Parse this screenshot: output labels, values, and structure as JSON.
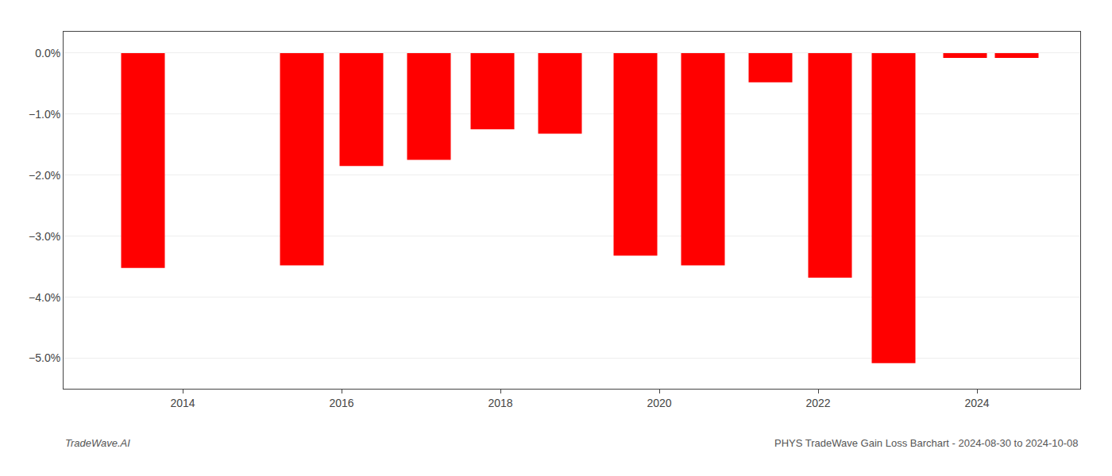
{
  "chart_data": {
    "type": "bar",
    "x": [
      2013.5,
      2015.5,
      2016.25,
      2017.1,
      2017.9,
      2018.75,
      2019.7,
      2020.55,
      2021.4,
      2022.15,
      2022.95,
      2023.85,
      2024.5
    ],
    "values": [
      -3.52,
      -3.48,
      -1.85,
      -1.75,
      -1.25,
      -1.32,
      -3.32,
      -3.48,
      -0.48,
      -3.68,
      -5.08,
      -0.08,
      -0.08
    ],
    "color": "#ff0000",
    "xlim": [
      2012.5,
      2025.3
    ],
    "xticks": [
      2014,
      2016,
      2018,
      2020,
      2022,
      2024
    ],
    "ylim": [
      -5.5,
      0.35
    ],
    "yticks": [
      {
        "value": 0.0,
        "label": "0.0%"
      },
      {
        "value": -1.0,
        "label": "−1.0%"
      },
      {
        "value": -2.0,
        "label": "−2.0%"
      },
      {
        "value": -3.0,
        "label": "−3.0%"
      },
      {
        "value": -4.0,
        "label": "−4.0%"
      },
      {
        "value": -5.0,
        "label": "−5.0%"
      }
    ],
    "grid": true,
    "annotations": [
      "TradeWave.AI",
      "PHYS TradeWave Gain Loss Barchart - 2024-08-30 to 2024-10-08"
    ]
  }
}
